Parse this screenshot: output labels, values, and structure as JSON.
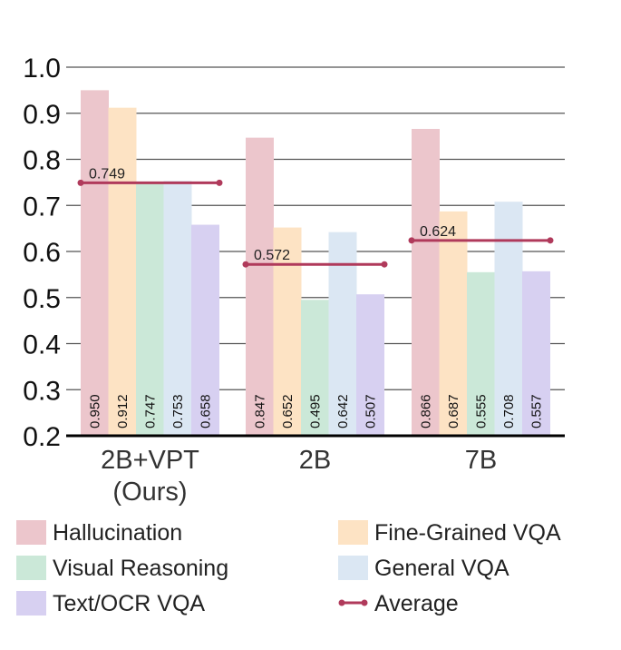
{
  "chart_data": {
    "type": "bar",
    "title": "",
    "xlabel": "",
    "ylabel": "",
    "ylim": [
      0.2,
      1.0
    ],
    "yticks": [
      "0.2",
      "0.3",
      "0.4",
      "0.5",
      "0.6",
      "0.7",
      "0.8",
      "0.9",
      "1.0"
    ],
    "grid": true,
    "categories": [
      {
        "line1": "2B+VPT",
        "line2": "(Ours)"
      },
      {
        "line1": "2B",
        "line2": ""
      },
      {
        "line1": "7B",
        "line2": ""
      }
    ],
    "series": [
      {
        "name": "Hallucination",
        "color": "#ecc6cc",
        "values": [
          0.95,
          0.847,
          0.866
        ],
        "labels": [
          "0.950",
          "0.847",
          "0.866"
        ]
      },
      {
        "name": "Fine-Grained VQA",
        "color": "#fde3c4",
        "values": [
          0.912,
          0.652,
          0.687
        ],
        "labels": [
          "0.912",
          "0.652",
          "0.687"
        ]
      },
      {
        "name": "Visual Reasoning",
        "color": "#cbe8d8",
        "values": [
          0.747,
          0.495,
          0.555
        ],
        "labels": [
          "0.747",
          "0.495",
          "0.555"
        ]
      },
      {
        "name": "General VQA",
        "color": "#dbe7f3",
        "values": [
          0.753,
          0.642,
          0.708
        ],
        "labels": [
          "0.753",
          "0.642",
          "0.708"
        ]
      },
      {
        "name": "Text/OCR VQA",
        "color": "#d7d0f1",
        "values": [
          0.658,
          0.507,
          0.557
        ],
        "labels": [
          "0.658",
          "0.507",
          "0.557"
        ]
      }
    ],
    "average": {
      "name": "Average",
      "color": "#b03a5b",
      "values": [
        0.749,
        0.572,
        0.624
      ],
      "labels": [
        "0.749",
        "0.572",
        "0.624"
      ]
    },
    "legend": {
      "placement": "bottom",
      "order": [
        "Hallucination",
        "Fine-Grained VQA",
        "Visual Reasoning",
        "General VQA",
        "Text/OCR VQA",
        "Average"
      ]
    }
  }
}
